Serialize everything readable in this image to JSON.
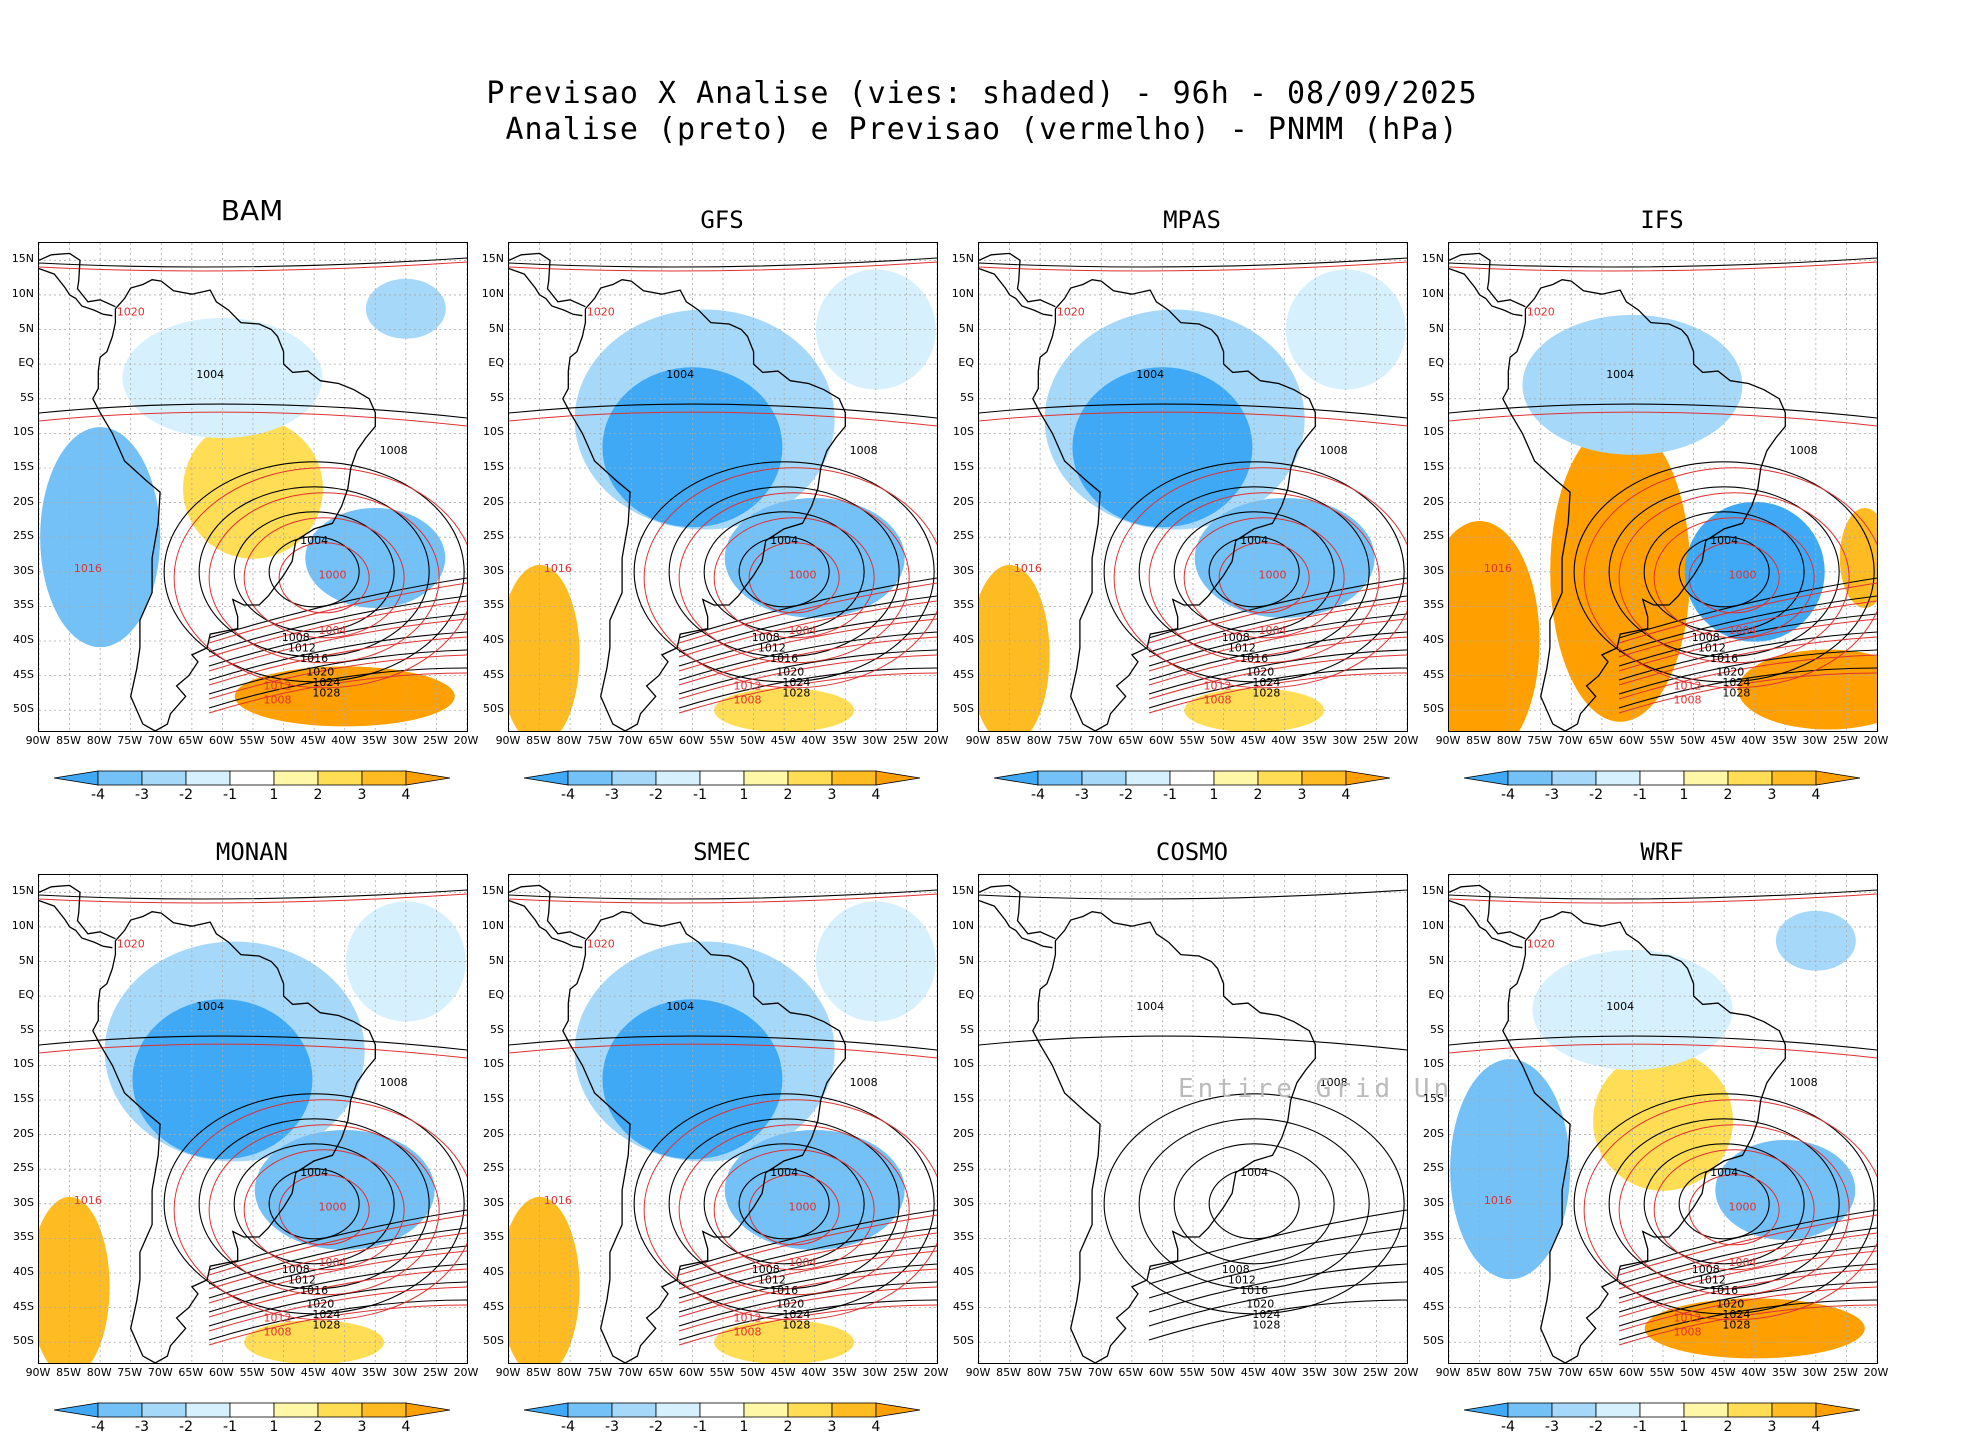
{
  "title": {
    "line1": "Previsao X Analise (vies: shaded) - 96h - 08/09/2025",
    "line2": "Analise (preto) e Previsao (vermelho) - PNMM (hPa)"
  },
  "panels": [
    {
      "name": "BAM",
      "bias": "mixed"
    },
    {
      "name": "GFS",
      "bias": "negative"
    },
    {
      "name": "MPAS",
      "bias": "negative"
    },
    {
      "name": "IFS",
      "bias": "positive"
    },
    {
      "name": "MONAN",
      "bias": "negative"
    },
    {
      "name": "SMEC",
      "bias": "negative"
    },
    {
      "name": "COSMO",
      "bias": "undefined",
      "undef_text": "Entire Grid Undef"
    },
    {
      "name": "WRF",
      "bias": "mixed"
    }
  ],
  "lat_labels": [
    "15N",
    "10N",
    "5N",
    "EQ",
    "5S",
    "10S",
    "15S",
    "20S",
    "25S",
    "30S",
    "35S",
    "40S",
    "45S",
    "50S"
  ],
  "lon_labels": [
    "90W",
    "85W",
    "80W",
    "75W",
    "70W",
    "65W",
    "60W",
    "55W",
    "50W",
    "45W",
    "40W",
    "35W",
    "30W",
    "25W",
    "20W"
  ],
  "colorbar": {
    "labels": [
      "-4",
      "-3",
      "-2",
      "-1",
      "1",
      "2",
      "3",
      "4"
    ],
    "colors": [
      "#3fa9f5",
      "#73c1f7",
      "#a6d8fa",
      "#d6f1fd",
      "#ffffff",
      "#fff7a8",
      "#ffdd55",
      "#ffbb22",
      "#ffa000"
    ]
  },
  "contour_labels": {
    "isobars": [
      "1004",
      "1008",
      "1012",
      "1016",
      "1020",
      "1024",
      "1028"
    ],
    "forecast": [
      "1000",
      "1004",
      "1008",
      "1012",
      "1016",
      "1020",
      "1024",
      "1028"
    ]
  }
}
